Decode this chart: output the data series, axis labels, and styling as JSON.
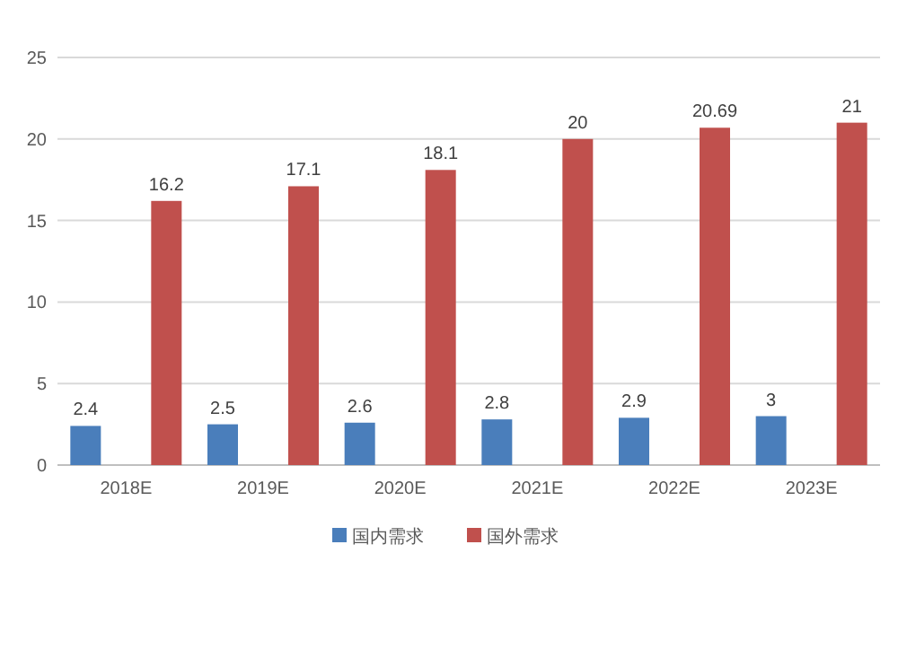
{
  "chart_data": {
    "type": "bar",
    "categories": [
      "2018E",
      "2019E",
      "2020E",
      "2021E",
      "2022E",
      "2023E"
    ],
    "series": [
      {
        "name": "国内需求",
        "color": "#4a7ebb",
        "values": [
          2.4,
          2.5,
          2.6,
          2.8,
          2.9,
          3
        ]
      },
      {
        "name": "国外需求",
        "color": "#c0504d",
        "values": [
          16.2,
          17.1,
          18.1,
          20,
          20.69,
          21
        ]
      }
    ],
    "ylim": [
      0,
      25
    ],
    "yticks": [
      0,
      5,
      10,
      15,
      20,
      25
    ],
    "grid": "y",
    "legend": "bottom",
    "data_labels": true
  }
}
